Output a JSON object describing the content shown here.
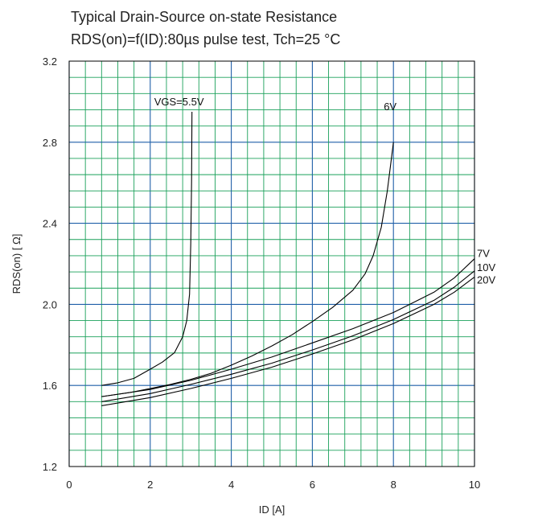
{
  "chart_data": {
    "type": "line",
    "title": "Typical Drain-Source on-state Resistance",
    "subtitle": "RDS(on)=f(ID):80µs pulse test, Tch=25  °C",
    "xlabel": "ID [A]",
    "ylabel": "RDS(on) [  Ω]",
    "xlim": [
      0,
      10
    ],
    "ylim": [
      1.2,
      3.2
    ],
    "x_ticks": [
      "0",
      "2",
      "4",
      "6",
      "8",
      "10"
    ],
    "y_ticks": [
      "1.2",
      "1.6",
      "2.0",
      "2.4",
      "2.8",
      "3.2"
    ],
    "grid": true,
    "colors": {
      "major_grid": "#1f5fa8",
      "minor_grid": "#1aa05a",
      "curve": "#000000",
      "frame": "#000000"
    },
    "series": [
      {
        "name": "VGS=5.5V",
        "points": [
          [
            0.8,
            1.6
          ],
          [
            1.2,
            1.613
          ],
          [
            1.6,
            1.635
          ],
          [
            2.0,
            1.68
          ],
          [
            2.3,
            1.715
          ],
          [
            2.6,
            1.762
          ],
          [
            2.8,
            1.84
          ],
          [
            2.9,
            1.92
          ],
          [
            2.97,
            2.05
          ],
          [
            3.0,
            2.3
          ],
          [
            3.02,
            2.6
          ],
          [
            3.03,
            2.95
          ]
        ]
      },
      {
        "name": "6V",
        "points": [
          [
            0.8,
            1.545
          ],
          [
            1.5,
            1.565
          ],
          [
            2.0,
            1.585
          ],
          [
            2.5,
            1.605
          ],
          [
            3.0,
            1.63
          ],
          [
            3.5,
            1.66
          ],
          [
            4.0,
            1.7
          ],
          [
            4.5,
            1.745
          ],
          [
            5.0,
            1.795
          ],
          [
            5.5,
            1.85
          ],
          [
            6.0,
            1.915
          ],
          [
            6.5,
            1.985
          ],
          [
            7.0,
            2.07
          ],
          [
            7.3,
            2.15
          ],
          [
            7.5,
            2.24
          ],
          [
            7.7,
            2.38
          ],
          [
            7.85,
            2.56
          ],
          [
            7.95,
            2.72
          ],
          [
            8.0,
            2.8
          ]
        ]
      },
      {
        "name": "7V",
        "points": [
          [
            0.8,
            1.545
          ],
          [
            2.0,
            1.58
          ],
          [
            3.0,
            1.625
          ],
          [
            4.0,
            1.68
          ],
          [
            5.0,
            1.74
          ],
          [
            6.0,
            1.81
          ],
          [
            7.0,
            1.88
          ],
          [
            8.0,
            1.96
          ],
          [
            9.0,
            2.06
          ],
          [
            9.5,
            2.13
          ],
          [
            10.0,
            2.225
          ]
        ]
      },
      {
        "name": "10V",
        "points": [
          [
            0.8,
            1.52
          ],
          [
            2.0,
            1.56
          ],
          [
            3.0,
            1.605
          ],
          [
            4.0,
            1.655
          ],
          [
            5.0,
            1.71
          ],
          [
            6.0,
            1.775
          ],
          [
            7.0,
            1.845
          ],
          [
            8.0,
            1.925
          ],
          [
            9.0,
            2.02
          ],
          [
            9.5,
            2.085
          ],
          [
            10.0,
            2.165
          ]
        ]
      },
      {
        "name": "20V",
        "points": [
          [
            0.8,
            1.5
          ],
          [
            2.0,
            1.54
          ],
          [
            3.0,
            1.585
          ],
          [
            4.0,
            1.635
          ],
          [
            5.0,
            1.69
          ],
          [
            6.0,
            1.755
          ],
          [
            7.0,
            1.825
          ],
          [
            8.0,
            1.905
          ],
          [
            9.0,
            2.0
          ],
          [
            9.5,
            2.06
          ],
          [
            10.0,
            2.135
          ]
        ]
      }
    ]
  }
}
